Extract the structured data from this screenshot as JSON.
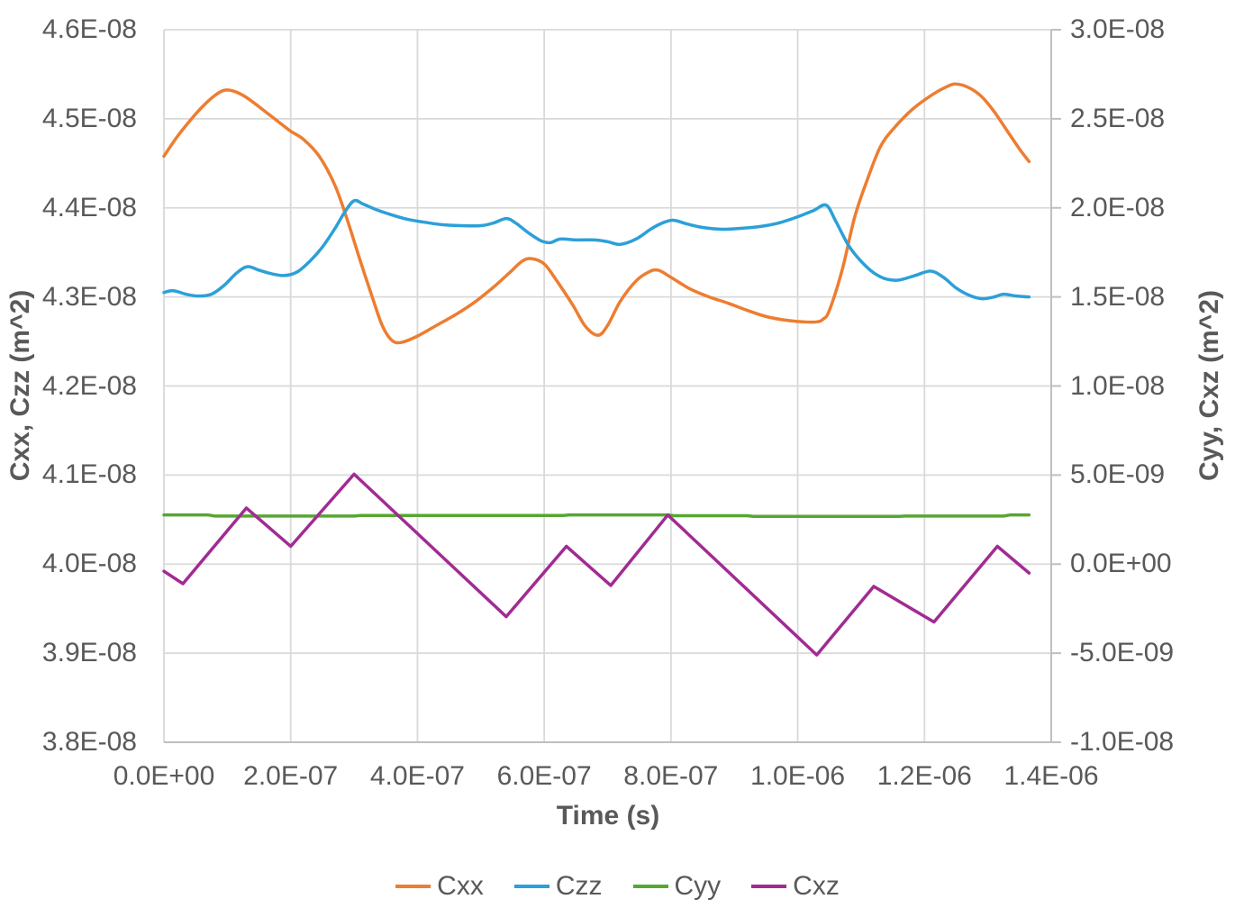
{
  "chart_data": {
    "type": "line",
    "title": "",
    "xlabel": "Time (s)",
    "grid": true,
    "legend_position": "bottom",
    "x_axis": {
      "min": 0,
      "max": 1.4e-06,
      "ticks": [
        {
          "value": 0,
          "label": "0.0E+00"
        },
        {
          "value": 2e-07,
          "label": "2.0E-07"
        },
        {
          "value": 4e-07,
          "label": "4.0E-07"
        },
        {
          "value": 6e-07,
          "label": "6.0E-07"
        },
        {
          "value": 8e-07,
          "label": "8.0E-07"
        },
        {
          "value": 1e-06,
          "label": "1.0E-06"
        },
        {
          "value": 1.2e-06,
          "label": "1.2E-06"
        },
        {
          "value": 1.4e-06,
          "label": "1.4E-06"
        }
      ]
    },
    "left_axis": {
      "title": "Cxx, Czz (m^2)",
      "min": 3.8e-08,
      "max": 4.6e-08,
      "ticks": [
        {
          "value": 4.6e-08,
          "label": "4.6E-08"
        },
        {
          "value": 4.5e-08,
          "label": "4.5E-08"
        },
        {
          "value": 4.4e-08,
          "label": "4.4E-08"
        },
        {
          "value": 4.3e-08,
          "label": "4.3E-08"
        },
        {
          "value": 4.2e-08,
          "label": "4.2E-08"
        },
        {
          "value": 4.1e-08,
          "label": "4.1E-08"
        },
        {
          "value": 4e-08,
          "label": "4.0E-08"
        },
        {
          "value": 3.9e-08,
          "label": "3.9E-08"
        },
        {
          "value": 3.8e-08,
          "label": "3.8E-08"
        }
      ]
    },
    "right_axis": {
      "title": "Cyy, Cxz (m^2)",
      "min": -1e-08,
      "max": 3e-08,
      "ticks": [
        {
          "value": 3e-08,
          "label": "3.0E-08"
        },
        {
          "value": 2.5e-08,
          "label": "2.5E-08"
        },
        {
          "value": 2e-08,
          "label": "2.0E-08"
        },
        {
          "value": 1.5e-08,
          "label": "1.5E-08"
        },
        {
          "value": 1e-08,
          "label": "1.0E-08"
        },
        {
          "value": 5e-09,
          "label": "5.0E-09"
        },
        {
          "value": 0,
          "label": "0.0E+00"
        },
        {
          "value": -5e-09,
          "label": "-5.0E-09"
        },
        {
          "value": -1e-08,
          "label": "-1.0E-08"
        }
      ]
    },
    "colors": {
      "gridline": "#D9D9D9",
      "axis_line": "#BFBFBF",
      "text": "#595959"
    },
    "series": [
      {
        "name": "Cxx",
        "color": "#ED7D31",
        "axis": "left",
        "smooth": true,
        "points": [
          [
            0,
            4.458e-08
          ],
          [
            2e-08,
            4.479e-08
          ],
          [
            4e-08,
            4.497e-08
          ],
          [
            6e-08,
            4.513e-08
          ],
          [
            8e-08,
            4.526e-08
          ],
          [
            9.5e-08,
            4.532e-08
          ],
          [
            1.1e-07,
            4.531e-08
          ],
          [
            1.3e-07,
            4.524e-08
          ],
          [
            1.6e-07,
            4.508e-08
          ],
          [
            1.8e-07,
            4.497e-08
          ],
          [
            2e-07,
            4.486e-08
          ],
          [
            2.2e-07,
            4.477e-08
          ],
          [
            2.45e-07,
            4.458e-08
          ],
          [
            2.7e-07,
            4.425e-08
          ],
          [
            2.9e-07,
            4.385e-08
          ],
          [
            3.1e-07,
            4.34e-08
          ],
          [
            3.3e-07,
            4.297e-08
          ],
          [
            3.45e-07,
            4.267e-08
          ],
          [
            3.6e-07,
            4.251e-08
          ],
          [
            3.75e-07,
            4.249e-08
          ],
          [
            4e-07,
            4.256e-08
          ],
          [
            4.3e-07,
            4.268e-08
          ],
          [
            4.6e-07,
            4.28e-08
          ],
          [
            4.9e-07,
            4.294e-08
          ],
          [
            5.2e-07,
            4.311e-08
          ],
          [
            5.45e-07,
            4.327e-08
          ],
          [
            5.65e-07,
            4.34e-08
          ],
          [
            5.8e-07,
            4.343e-08
          ],
          [
            6e-07,
            4.337e-08
          ],
          [
            6.2e-07,
            4.318e-08
          ],
          [
            6.45e-07,
            4.291e-08
          ],
          [
            6.65e-07,
            4.267e-08
          ],
          [
            6.85e-07,
            4.257e-08
          ],
          [
            7e-07,
            4.268e-08
          ],
          [
            7.2e-07,
            4.295e-08
          ],
          [
            7.45e-07,
            4.318e-08
          ],
          [
            7.65e-07,
            4.328e-08
          ],
          [
            7.8e-07,
            4.33e-08
          ],
          [
            8e-07,
            4.322e-08
          ],
          [
            8.3e-07,
            4.309e-08
          ],
          [
            8.6e-07,
            4.3e-08
          ],
          [
            8.9e-07,
            4.293e-08
          ],
          [
            9.2e-07,
            4.285e-08
          ],
          [
            9.5e-07,
            4.278e-08
          ],
          [
            9.8e-07,
            4.274e-08
          ],
          [
            1.01e-06,
            4.272e-08
          ],
          [
            1.03e-06,
            4.272e-08
          ],
          [
            1.04e-06,
            4.275e-08
          ],
          [
            1.05e-06,
            4.285e-08
          ],
          [
            1.07e-06,
            4.33e-08
          ],
          [
            1.09e-06,
            4.39e-08
          ],
          [
            1.11e-06,
            4.432e-08
          ],
          [
            1.13e-06,
            4.468e-08
          ],
          [
            1.15e-06,
            4.488e-08
          ],
          [
            1.18e-06,
            4.51e-08
          ],
          [
            1.21e-06,
            4.526e-08
          ],
          [
            1.235e-06,
            4.536e-08
          ],
          [
            1.25e-06,
            4.539e-08
          ],
          [
            1.27e-06,
            4.535e-08
          ],
          [
            1.29e-06,
            4.525e-08
          ],
          [
            1.31e-06,
            4.508e-08
          ],
          [
            1.33e-06,
            4.487e-08
          ],
          [
            1.35e-06,
            4.466e-08
          ],
          [
            1.365e-06,
            4.452e-08
          ]
        ]
      },
      {
        "name": "Czz",
        "color": "#2BA0D9",
        "axis": "left",
        "smooth": true,
        "points": [
          [
            0,
            4.305e-08
          ],
          [
            1.5e-08,
            4.307e-08
          ],
          [
            3.5e-08,
            4.303e-08
          ],
          [
            5.5e-08,
            4.301e-08
          ],
          [
            7.5e-08,
            4.303e-08
          ],
          [
            9.5e-08,
            4.313e-08
          ],
          [
            1.15e-07,
            4.327e-08
          ],
          [
            1.32e-07,
            4.334e-08
          ],
          [
            1.5e-07,
            4.33e-08
          ],
          [
            1.7e-07,
            4.326e-08
          ],
          [
            1.9e-07,
            4.324e-08
          ],
          [
            2.1e-07,
            4.328e-08
          ],
          [
            2.3e-07,
            4.34e-08
          ],
          [
            2.5e-07,
            4.356e-08
          ],
          [
            2.7e-07,
            4.377e-08
          ],
          [
            2.85e-07,
            4.395e-08
          ],
          [
            3e-07,
            4.408e-08
          ],
          [
            3.15e-07,
            4.404e-08
          ],
          [
            3.35e-07,
            4.398e-08
          ],
          [
            3.6e-07,
            4.392e-08
          ],
          [
            3.85e-07,
            4.387e-08
          ],
          [
            4.1e-07,
            4.384e-08
          ],
          [
            4.4e-07,
            4.381e-08
          ],
          [
            4.7e-07,
            4.38e-08
          ],
          [
            5e-07,
            4.38e-08
          ],
          [
            5.2e-07,
            4.383e-08
          ],
          [
            5.4e-07,
            4.388e-08
          ],
          [
            5.55e-07,
            4.383e-08
          ],
          [
            5.75e-07,
            4.372e-08
          ],
          [
            5.95e-07,
            4.363e-08
          ],
          [
            6.1e-07,
            4.361e-08
          ],
          [
            6.25e-07,
            4.365e-08
          ],
          [
            6.5e-07,
            4.364e-08
          ],
          [
            6.8e-07,
            4.364e-08
          ],
          [
            7e-07,
            4.362e-08
          ],
          [
            7.2e-07,
            4.359e-08
          ],
          [
            7.45e-07,
            4.365e-08
          ],
          [
            7.7e-07,
            4.377e-08
          ],
          [
            7.9e-07,
            4.384e-08
          ],
          [
            8.05e-07,
            4.386e-08
          ],
          [
            8.25e-07,
            4.382e-08
          ],
          [
            8.5e-07,
            4.378e-08
          ],
          [
            8.8e-07,
            4.376e-08
          ],
          [
            9.1e-07,
            4.377e-08
          ],
          [
            9.4e-07,
            4.379e-08
          ],
          [
            9.7e-07,
            4.383e-08
          ],
          [
            1e-06,
            4.39e-08
          ],
          [
            1.025e-06,
            4.397e-08
          ],
          [
            1.045e-06,
            4.403e-08
          ],
          [
            1.06e-06,
            4.385e-08
          ],
          [
            1.08e-06,
            4.358e-08
          ],
          [
            1.1e-06,
            4.34e-08
          ],
          [
            1.12e-06,
            4.327e-08
          ],
          [
            1.14e-06,
            4.32e-08
          ],
          [
            1.16e-06,
            4.319e-08
          ],
          [
            1.185e-06,
            4.324e-08
          ],
          [
            1.21e-06,
            4.329e-08
          ],
          [
            1.23e-06,
            4.322e-08
          ],
          [
            1.25e-06,
            4.31e-08
          ],
          [
            1.27e-06,
            4.302e-08
          ],
          [
            1.29e-06,
            4.298e-08
          ],
          [
            1.31e-06,
            4.3e-08
          ],
          [
            1.325e-06,
            4.303e-08
          ],
          [
            1.345e-06,
            4.301e-08
          ],
          [
            1.365e-06,
            4.3e-08
          ]
        ]
      },
      {
        "name": "Cyy",
        "color": "#56A733",
        "axis": "right",
        "smooth": false,
        "points": [
          [
            0,
            2.76e-09
          ],
          [
            7e-08,
            2.76e-09
          ],
          [
            8e-08,
            2.7e-09
          ],
          [
            3e-07,
            2.7e-09
          ],
          [
            3.1e-07,
            2.73e-09
          ],
          [
            6.3e-07,
            2.73e-09
          ],
          [
            6.4e-07,
            2.76e-09
          ],
          [
            7.95e-07,
            2.76e-09
          ],
          [
            8.05e-07,
            2.72e-09
          ],
          [
            9.2e-07,
            2.72e-09
          ],
          [
            9.3e-07,
            2.68e-09
          ],
          [
            1.16e-06,
            2.68e-09
          ],
          [
            1.17e-06,
            2.7e-09
          ],
          [
            1.325e-06,
            2.7e-09
          ],
          [
            1.335e-06,
            2.76e-09
          ],
          [
            1.365e-06,
            2.76e-09
          ]
        ]
      },
      {
        "name": "Cxz",
        "color": "#A12B93",
        "axis": "right",
        "smooth": false,
        "points": [
          [
            0,
            -4e-10
          ],
          [
            3e-08,
            -1.1e-09
          ],
          [
            1.3e-07,
            3.15e-09
          ],
          [
            2e-07,
            1e-09
          ],
          [
            3e-07,
            5.05e-09
          ],
          [
            5.4e-07,
            -2.95e-09
          ],
          [
            6.35e-07,
            1e-09
          ],
          [
            7.05e-07,
            -1.2e-09
          ],
          [
            7.95e-07,
            2.76e-09
          ],
          [
            1.03e-06,
            -5.1e-09
          ],
          [
            1.12e-06,
            -1.25e-09
          ],
          [
            1.215e-06,
            -3.25e-09
          ],
          [
            1.315e-06,
            1e-09
          ],
          [
            1.365e-06,
            -5e-10
          ]
        ]
      }
    ]
  }
}
